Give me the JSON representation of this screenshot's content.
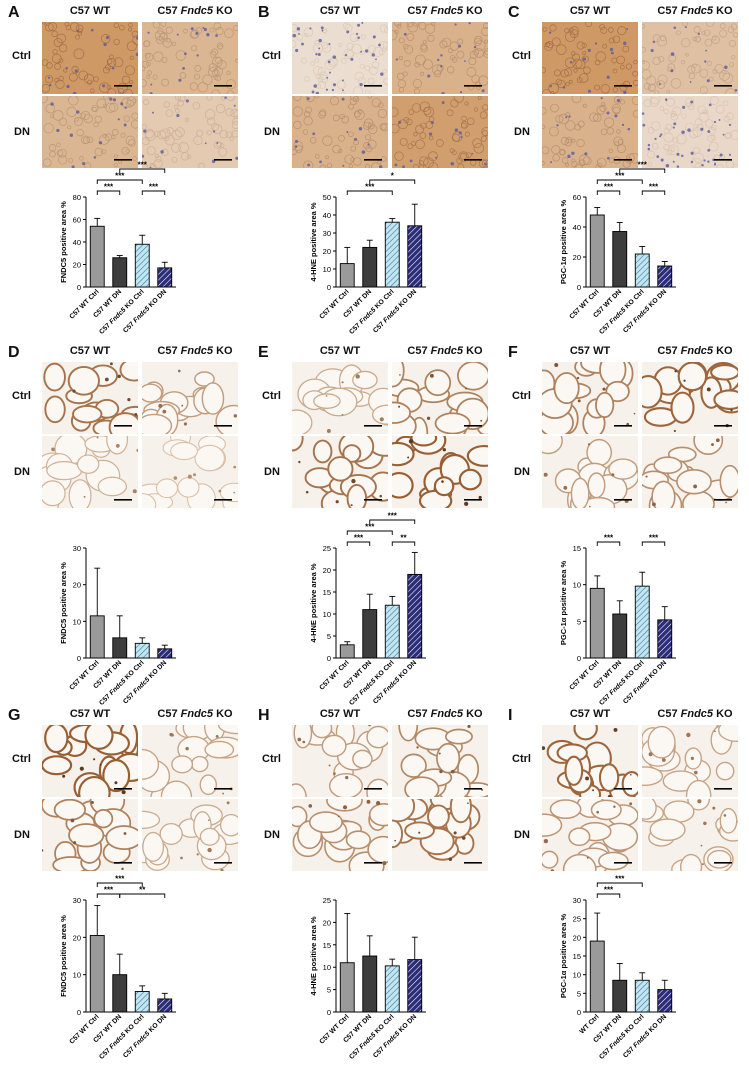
{
  "figure": {
    "col_header_wt": "C57 WT",
    "col_header_ko_prefix": "C57 ",
    "col_header_ko_gene": "Fndc5",
    "col_header_ko_suffix": " KO",
    "row_header_ctrl": "Ctrl",
    "row_header_dn": "DN",
    "group_labels": [
      "C57 WT Ctrl",
      "C57 WT DN",
      "C57 Fndc5 KO Ctrl",
      "C57 Fndc5 KO DN"
    ]
  },
  "colors": {
    "bar_wt_ctrl": "#9a9a9a",
    "bar_wt_dn": "#3d3d3d",
    "bar_ko_ctrl_fill": "#bfe6f2",
    "bar_ko_dn_fill": "#2b2d7a",
    "stain_brown": "#8a4a1c",
    "stain_light": "#f3e6d6",
    "hema_blue": "#5a5aa0"
  },
  "panels": [
    {
      "id": "A",
      "label": "A",
      "tissue": "kidney-like",
      "stain_level": [
        0.85,
        0.55,
        0.55,
        0.35
      ]
    },
    {
      "id": "B",
      "label": "B",
      "tissue": "kidney-like",
      "stain_level": [
        0.15,
        0.6,
        0.6,
        0.8
      ]
    },
    {
      "id": "C",
      "label": "C",
      "tissue": "kidney-like",
      "stain_level": [
        0.85,
        0.45,
        0.6,
        0.2
      ]
    },
    {
      "id": "D",
      "label": "D",
      "tissue": "adipose",
      "stain_level": [
        0.7,
        0.4,
        0.25,
        0.15
      ]
    },
    {
      "id": "E",
      "label": "E",
      "tissue": "adipose",
      "stain_level": [
        0.3,
        0.6,
        0.7,
        0.85
      ]
    },
    {
      "id": "F",
      "label": "F",
      "tissue": "adipose",
      "stain_level": [
        0.6,
        0.8,
        0.4,
        0.5
      ]
    },
    {
      "id": "G",
      "label": "G",
      "tissue": "adipose",
      "stain_level": [
        0.85,
        0.35,
        0.6,
        0.3
      ]
    },
    {
      "id": "H",
      "label": "H",
      "tissue": "adipose",
      "stain_level": [
        0.4,
        0.55,
        0.5,
        0.7
      ]
    },
    {
      "id": "I",
      "label": "I",
      "tissue": "adipose",
      "stain_level": [
        0.8,
        0.35,
        0.45,
        0.35
      ]
    }
  ],
  "chart_data": [
    {
      "panel": "A",
      "type": "bar",
      "ylabel": "FNDC5 positive area %",
      "ylim": [
        0,
        80
      ],
      "yticks": [
        0,
        20,
        40,
        60,
        80
      ],
      "categories": [
        "C57 WT Ctrl",
        "C57 WT DN",
        "C57 Fndc5 KO Ctrl",
        "C57 Fndc5 KO DN"
      ],
      "values": [
        54,
        26,
        38,
        17
      ],
      "errors": [
        7,
        2,
        8,
        5
      ],
      "significance": [
        {
          "from": 0,
          "to": 1,
          "label": "***",
          "level": 1
        },
        {
          "from": 2,
          "to": 3,
          "label": "***",
          "level": 1
        },
        {
          "from": 0,
          "to": 2,
          "label": "***",
          "level": 2
        },
        {
          "from": 1,
          "to": 3,
          "label": "***",
          "level": 3
        }
      ]
    },
    {
      "panel": "B",
      "type": "bar",
      "ylabel": "4-HNE positive area %",
      "ylim": [
        0,
        50
      ],
      "yticks": [
        0,
        10,
        20,
        30,
        40,
        50
      ],
      "categories": [
        "C57 WT Ctrl",
        "C57 WT DN",
        "C57 Fndc5 KO Ctrl",
        "C57 Fndc5 KO DN"
      ],
      "values": [
        13,
        22,
        36,
        34
      ],
      "errors": [
        9,
        4,
        2,
        12
      ],
      "significance": [
        {
          "from": 0,
          "to": 2,
          "label": "***",
          "level": 1
        },
        {
          "from": 1,
          "to": 3,
          "label": "*",
          "level": 2
        }
      ]
    },
    {
      "panel": "C",
      "type": "bar",
      "ylabel": "PGC-1α positive area %",
      "ylim": [
        0,
        60
      ],
      "yticks": [
        0,
        20,
        40,
        60
      ],
      "categories": [
        "C57 WT Ctrl",
        "C57 WT DN",
        "C57 Fndc5 KO Ctrl",
        "C57 Fndc5 KO DN"
      ],
      "values": [
        48,
        37,
        22,
        14
      ],
      "errors": [
        5,
        6,
        5,
        3
      ],
      "significance": [
        {
          "from": 0,
          "to": 1,
          "label": "***",
          "level": 1
        },
        {
          "from": 2,
          "to": 3,
          "label": "***",
          "level": 1
        },
        {
          "from": 0,
          "to": 2,
          "label": "***",
          "level": 2
        },
        {
          "from": 1,
          "to": 3,
          "label": "***",
          "level": 3
        }
      ]
    },
    {
      "panel": "D",
      "type": "bar",
      "ylabel": "FNDC5 positive area %",
      "ylim": [
        0,
        30
      ],
      "yticks": [
        0,
        10,
        20,
        30
      ],
      "categories": [
        "C57 WT Ctrl",
        "C57 WT DN",
        "C57 Fndc5 KO Ctrl",
        "C57 Fndc5 KO DN"
      ],
      "values": [
        11.5,
        5.5,
        4,
        2.5
      ],
      "errors": [
        13,
        6,
        1.5,
        1
      ],
      "significance": []
    },
    {
      "panel": "E",
      "type": "bar",
      "ylabel": "4-HNE positive area %",
      "ylim": [
        0,
        25
      ],
      "yticks": [
        0,
        5,
        10,
        15,
        20,
        25
      ],
      "categories": [
        "C57 WT Ctrl",
        "C57 WT DN",
        "C57 Fndc5 KO Ctrl",
        "C57 Fndc5 KO DN"
      ],
      "values": [
        3,
        11,
        12,
        19
      ],
      "errors": [
        0.7,
        3.5,
        2,
        5
      ],
      "significance": [
        {
          "from": 0,
          "to": 1,
          "label": "***",
          "level": 1
        },
        {
          "from": 2,
          "to": 3,
          "label": "**",
          "level": 1
        },
        {
          "from": 0,
          "to": 2,
          "label": "***",
          "level": 2
        },
        {
          "from": 1,
          "to": 3,
          "label": "***",
          "level": 3
        }
      ]
    },
    {
      "panel": "F",
      "type": "bar",
      "ylabel": "PGC-1α positive area %",
      "ylim": [
        0,
        15
      ],
      "yticks": [
        0,
        5,
        10,
        15
      ],
      "categories": [
        "C57 WT Ctrl",
        "C57 WT DN",
        "C57 Fndc5 KO Ctrl",
        "C57 Fndc5 KO DN"
      ],
      "values": [
        9.5,
        6,
        9.8,
        5.2
      ],
      "errors": [
        1.7,
        1.8,
        1.9,
        1.8
      ],
      "significance": [
        {
          "from": 0,
          "to": 1,
          "label": "***",
          "level": 1
        },
        {
          "from": 2,
          "to": 3,
          "label": "***",
          "level": 1
        }
      ]
    },
    {
      "panel": "G",
      "type": "bar",
      "ylabel": "FNDC5 positive area %",
      "ylim": [
        0,
        30
      ],
      "yticks": [
        0,
        10,
        20,
        30
      ],
      "categories": [
        "C57 WT Ctrl",
        "C57 WT DN",
        "C57 Fndc5 KO Ctrl",
        "C57 Fndc5 KO DN"
      ],
      "values": [
        20.5,
        10,
        5.5,
        3.5
      ],
      "errors": [
        8,
        5.5,
        1.5,
        1.5
      ],
      "significance": [
        {
          "from": 0,
          "to": 1,
          "label": "***",
          "level": 1
        },
        {
          "from": 1,
          "to": 3,
          "label": "**",
          "level": 1
        },
        {
          "from": 0,
          "to": 2,
          "label": "***",
          "level": 2
        }
      ]
    },
    {
      "panel": "H",
      "type": "bar",
      "ylabel": "4-HNE positive area %",
      "ylim": [
        0,
        25
      ],
      "yticks": [
        0,
        5,
        10,
        15,
        20,
        25
      ],
      "categories": [
        "C57 WT Ctrl",
        "C57 WT DN",
        "C57 Fndc5 KO Ctrl",
        "C57 Fndc5 KO DN"
      ],
      "values": [
        11,
        12.5,
        10.3,
        11.7
      ],
      "errors": [
        11,
        4.5,
        1.5,
        5
      ],
      "significance": []
    },
    {
      "panel": "I",
      "type": "bar",
      "ylabel": "PGC-1α positive area %",
      "ylim": [
        0,
        30
      ],
      "yticks": [
        0,
        5,
        10,
        15,
        20,
        25,
        30
      ],
      "categories": [
        "WT Ctrl",
        "C57 WT DN",
        "C57 Fndc5 KO Ctrl",
        "C57 Fndc5 KO DN"
      ],
      "values": [
        19,
        8.5,
        8.5,
        6
      ],
      "errors": [
        7.5,
        4.5,
        2,
        2.5
      ],
      "significance": [
        {
          "from": 0,
          "to": 1,
          "label": "***",
          "level": 1
        },
        {
          "from": 0,
          "to": 2,
          "label": "***",
          "level": 2
        }
      ]
    }
  ]
}
